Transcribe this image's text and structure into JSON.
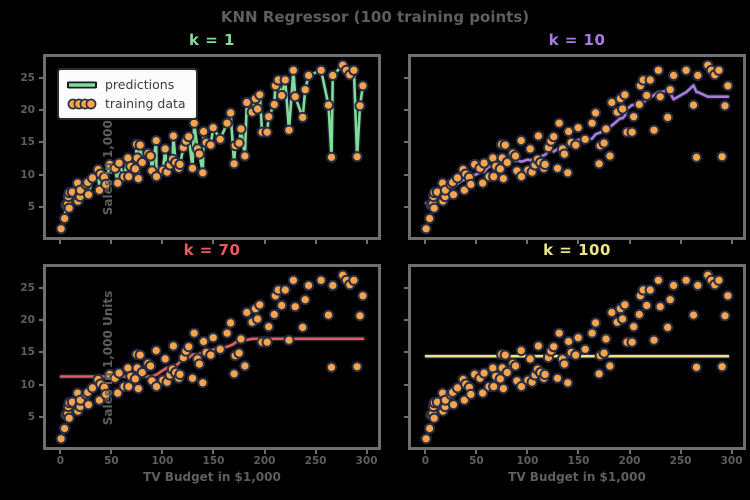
{
  "figure": {
    "suptitle": "KNN Regressor (100 training points)"
  },
  "colors": {
    "background": "#000000",
    "text": "#5e5e5e",
    "spine": "#6e6e6e",
    "marker_fill": "#f8a44c",
    "marker_stroke": "#272e44",
    "line_outline": "#161a24",
    "legend_bg": "#fcfcfc",
    "legend_border": "#2b2b2b",
    "legend_text": "#3c3c3c"
  },
  "legend": {
    "entries": [
      {
        "label": "predictions",
        "type": "line",
        "color": "#7fdd99"
      },
      {
        "label": "training data",
        "type": "markers",
        "color": "#f8a44c"
      }
    ]
  },
  "chart_data": {
    "type": "scatter",
    "title": "KNN Regressor (100 training points)",
    "xlabel": "TV Budget in $1,000",
    "ylabel": "Sales in 1,000 Units",
    "xlim": [
      -14.1,
      311.2
    ],
    "ylim": [
      0.33,
      28.27
    ],
    "x_ticks": [
      0,
      50,
      100,
      150,
      200,
      250,
      300
    ],
    "y_ticks": [
      5,
      10,
      15,
      20,
      25
    ],
    "grid": false,
    "legend_position": "upper-left of first subplot",
    "subplots": [
      {
        "title": "k = 1",
        "k": 1,
        "line_color": "#7fdd99"
      },
      {
        "title": "k = 10",
        "k": 10,
        "line_color": "#a87ce0"
      },
      {
        "title": "k = 70",
        "k": 70,
        "line_color": "#e65c5e"
      },
      {
        "title": "k = 100",
        "k": 100,
        "line_color": "#eee388"
      }
    ],
    "prediction_rule": "y_hat(x) = mean of y over the k nearest training points by x",
    "training_data": [
      [
        0.7,
        1.6
      ],
      [
        4.1,
        3.2
      ],
      [
        5.4,
        5.3
      ],
      [
        7.3,
        5.5
      ],
      [
        7.8,
        6.6
      ],
      [
        8.6,
        4.8
      ],
      [
        8.7,
        7.2
      ],
      [
        11.7,
        7.3
      ],
      [
        16.9,
        8.7
      ],
      [
        17.2,
        5.9
      ],
      [
        18.7,
        6.7
      ],
      [
        19.4,
        6.6
      ],
      [
        19.6,
        7.6
      ],
      [
        25.1,
        8.5
      ],
      [
        26.8,
        8.8
      ],
      [
        27.5,
        6.9
      ],
      [
        31.5,
        9.5
      ],
      [
        36.9,
        10.8
      ],
      [
        38.2,
        7.6
      ],
      [
        39.5,
        10.1
      ],
      [
        43.0,
        9.6
      ],
      [
        44.5,
        8.5
      ],
      [
        48.3,
        11.6
      ],
      [
        53.5,
        11.0
      ],
      [
        56.2,
        8.7
      ],
      [
        57.5,
        11.8
      ],
      [
        62.3,
        9.7
      ],
      [
        66.1,
        12.6
      ],
      [
        66.9,
        9.7
      ],
      [
        69.0,
        11.3
      ],
      [
        73.4,
        10.9
      ],
      [
        74.7,
        14.7
      ],
      [
        75.3,
        12.6
      ],
      [
        76.4,
        9.4
      ],
      [
        78.2,
        14.6
      ],
      [
        80.2,
        11.9
      ],
      [
        85.7,
        13.3
      ],
      [
        88.3,
        12.9
      ],
      [
        89.7,
        10.6
      ],
      [
        93.9,
        15.3
      ],
      [
        94.2,
        9.7
      ],
      [
        100.4,
        10.7
      ],
      [
        102.7,
        14.0
      ],
      [
        104.6,
        10.4
      ],
      [
        107.4,
        11.5
      ],
      [
        109.8,
        12.4
      ],
      [
        110.7,
        16.0
      ],
      [
        112.9,
        11.9
      ],
      [
        116.0,
        11.0
      ],
      [
        117.2,
        11.6
      ],
      [
        120.5,
        14.2
      ],
      [
        123.1,
        15.2
      ],
      [
        125.7,
        15.9
      ],
      [
        129.4,
        11.0
      ],
      [
        131.1,
        18.0
      ],
      [
        134.3,
        14.0
      ],
      [
        136.2,
        13.2
      ],
      [
        139.5,
        10.3
      ],
      [
        140.3,
        16.7
      ],
      [
        142.9,
        15.0
      ],
      [
        147.3,
        14.6
      ],
      [
        149.7,
        17.3
      ],
      [
        156.6,
        15.5
      ],
      [
        163.3,
        18.0
      ],
      [
        166.8,
        19.6
      ],
      [
        170.2,
        11.7
      ],
      [
        171.3,
        14.5
      ],
      [
        175.1,
        14.9
      ],
      [
        177.0,
        17.1
      ],
      [
        180.8,
        12.9
      ],
      [
        182.6,
        21.2
      ],
      [
        187.9,
        19.7
      ],
      [
        191.1,
        21.8
      ],
      [
        193.2,
        20.2
      ],
      [
        195.4,
        22.4
      ],
      [
        197.6,
        16.6
      ],
      [
        202.5,
        16.6
      ],
      [
        204.1,
        19.0
      ],
      [
        209.6,
        20.9
      ],
      [
        210.7,
        23.8
      ],
      [
        213.4,
        24.7
      ],
      [
        216.8,
        22.3
      ],
      [
        220.3,
        24.7
      ],
      [
        224.0,
        16.9
      ],
      [
        228.3,
        26.2
      ],
      [
        230.1,
        22.1
      ],
      [
        237.4,
        18.9
      ],
      [
        239.9,
        23.2
      ],
      [
        243.2,
        25.4
      ],
      [
        255.4,
        26.2
      ],
      [
        262.7,
        20.8
      ],
      [
        265.6,
        12.7
      ],
      [
        266.9,
        25.4
      ],
      [
        276.7,
        27.0
      ],
      [
        280.2,
        26.2
      ],
      [
        283.6,
        25.5
      ],
      [
        287.6,
        26.2
      ],
      [
        290.7,
        12.8
      ],
      [
        293.6,
        20.7
      ],
      [
        296.4,
        23.8
      ]
    ]
  }
}
